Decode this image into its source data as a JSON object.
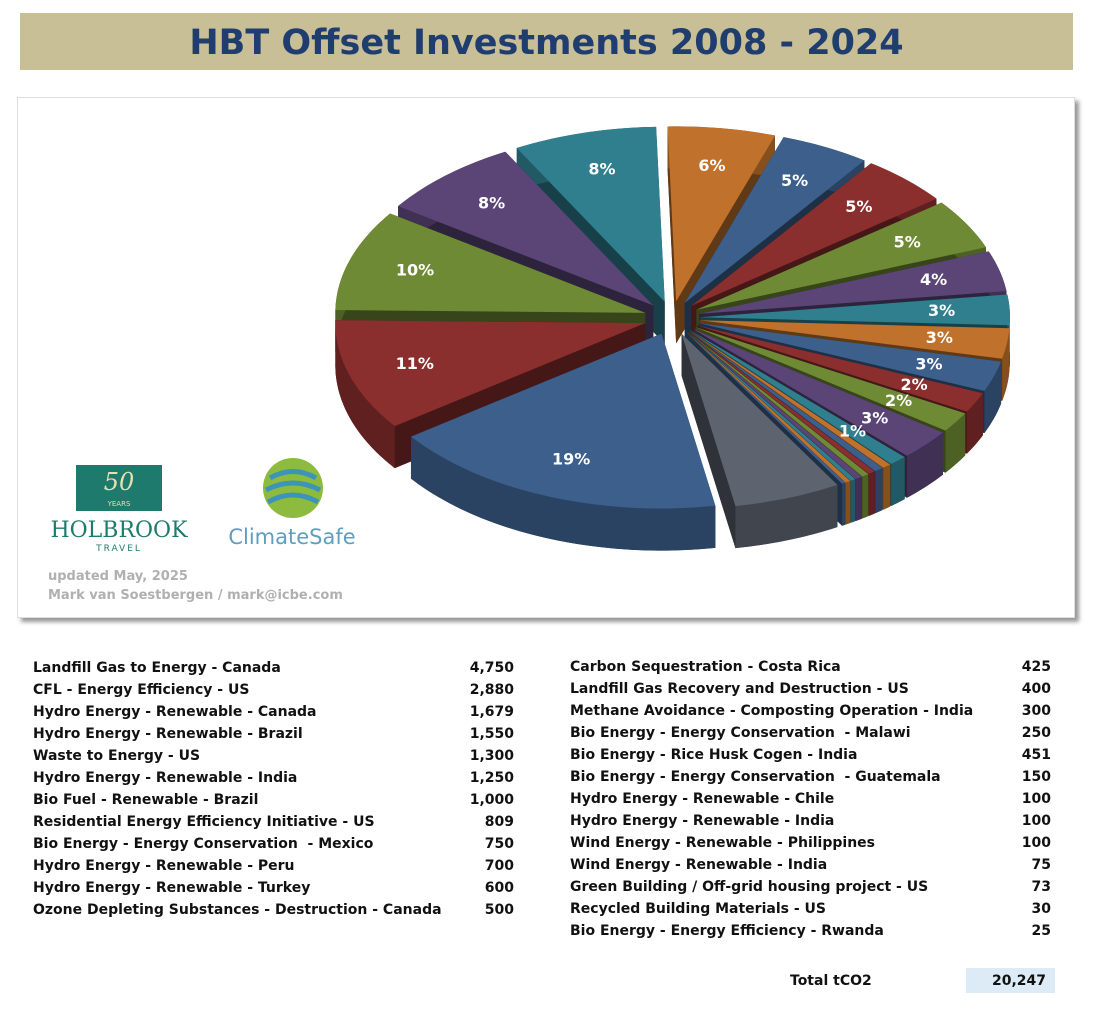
{
  "header": {
    "title": "HBT Offset Investments 2008 - 2024"
  },
  "chart_data": {
    "type": "pie",
    "values": [
      19,
      11,
      10,
      8,
      8,
      6,
      5,
      5,
      5,
      4,
      3,
      3,
      3,
      2,
      2,
      3,
      1,
      0.5,
      0.5,
      0.4,
      0.4,
      0.4,
      0.3,
      0.3,
      0.2,
      6
    ],
    "value_labels": [
      "19%",
      "11%",
      "10%",
      "8%",
      "8%",
      "6%",
      "5%",
      "5%",
      "5%",
      "4%",
      "3%",
      "3%",
      "3%",
      "2%",
      "2%",
      "3%",
      "1%",
      null,
      null,
      null,
      null,
      null,
      null,
      null,
      null,
      null
    ],
    "colors": [
      "#3c5f8c",
      "#8b2e2e",
      "#6f8a34",
      "#5b4577",
      "#2f7f8f",
      "#c0712b",
      "#3c5f8c",
      "#8b2e2e",
      "#6f8a34",
      "#5b4577",
      "#2f7f8f",
      "#c0712b",
      "#3c5f8c",
      "#8b2e2e",
      "#6f8a34",
      "#5b4577",
      "#2f7f8f",
      "#c0712b",
      "#3c5f8c",
      "#8b2e2e",
      "#6f8a34",
      "#5b4577",
      "#2f7f8f",
      "#c0712b",
      "#3c5f8c",
      "#5d6470"
    ]
  },
  "logos": {
    "years": "50",
    "years_word": "YEARS",
    "holbrook": "HOLBROOK",
    "travel": "TRAVEL",
    "climatesafe": "ClimateSafe"
  },
  "notes": {
    "updated": "updated May, 2025",
    "author": "Mark van Soestbergen / mark@icbe.com"
  },
  "table": {
    "left": [
      [
        "Landfill Gas to Energy - Canada",
        "4,750"
      ],
      [
        "CFL - Energy Efficiency - US",
        "2,880"
      ],
      [
        "Hydro Energy - Renewable - Canada",
        "1,679"
      ],
      [
        "Hydro Energy - Renewable - Brazil",
        "1,550"
      ],
      [
        "Waste to Energy - US",
        "1,300"
      ],
      [
        "Hydro Energy - Renewable - India",
        "1,250"
      ],
      [
        "Bio Fuel - Renewable - Brazil",
        "1,000"
      ],
      [
        "Residential Energy Efficiency Initiative - US",
        "809"
      ],
      [
        "Bio Energy - Energy Conservation  - Mexico",
        "750"
      ],
      [
        "Hydro Energy - Renewable - Peru",
        "700"
      ],
      [
        "Hydro Energy - Renewable - Turkey",
        "600"
      ],
      [
        "Ozone Depleting Substances - Destruction - Canada",
        "500"
      ]
    ],
    "right": [
      [
        "Carbon Sequestration - Costa Rica",
        "425"
      ],
      [
        "Landfill Gas Recovery and Destruction - US",
        "400"
      ],
      [
        "Methane Avoidance - Composting Operation - India",
        "300"
      ],
      [
        "Bio Energy - Energy Conservation  - Malawi",
        "250"
      ],
      [
        "Bio Energy - Rice Husk Cogen - India",
        "451"
      ],
      [
        "Bio Energy - Energy Conservation  - Guatemala",
        "150"
      ],
      [
        "Hydro Energy - Renewable - Chile",
        "100"
      ],
      [
        "Hydro Energy - Renewable - India",
        "100"
      ],
      [
        "Wind Energy - Renewable - Philippines",
        "100"
      ],
      [
        "Wind Energy - Renewable - India",
        "75"
      ],
      [
        "Green Building / Off-grid housing project - US",
        "73"
      ],
      [
        "Recycled Building Materials - US",
        "30"
      ],
      [
        "Bio Energy - Energy Efficiency - Rwanda",
        "25"
      ]
    ],
    "total_label": "Total tCO2",
    "total_value": "20,247"
  }
}
